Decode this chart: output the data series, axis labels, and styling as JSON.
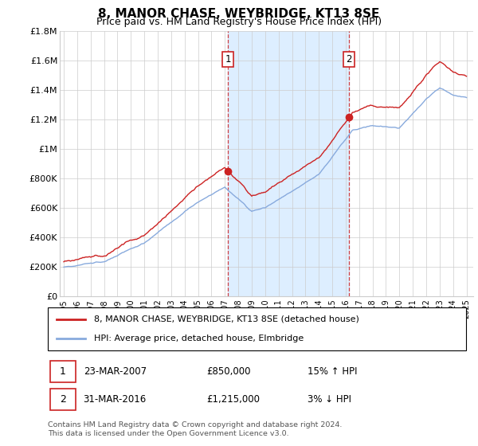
{
  "title": "8, MANOR CHASE, WEYBRIDGE, KT13 8SE",
  "subtitle": "Price paid vs. HM Land Registry's House Price Index (HPI)",
  "legend_line1": "8, MANOR CHASE, WEYBRIDGE, KT13 8SE (detached house)",
  "legend_line2": "HPI: Average price, detached house, Elmbridge",
  "sale1_date": "23-MAR-2007",
  "sale1_price": "£850,000",
  "sale1_hpi": "15% ↑ HPI",
  "sale2_date": "31-MAR-2016",
  "sale2_price": "£1,215,000",
  "sale2_hpi": "3% ↓ HPI",
  "footnote": "Contains HM Land Registry data © Crown copyright and database right 2024.\nThis data is licensed under the Open Government Licence v3.0.",
  "red_color": "#cc2222",
  "blue_color": "#88aadd",
  "shading_color": "#ddeeff",
  "grid_color": "#cccccc",
  "background_color": "#ffffff",
  "ylim_min": 0,
  "ylim_max": 1800000,
  "yticks": [
    0,
    200000,
    400000,
    600000,
    800000,
    1000000,
    1200000,
    1400000,
    1600000,
    1800000
  ],
  "ytick_labels": [
    "£0",
    "£200K",
    "£400K",
    "£600K",
    "£800K",
    "£1M",
    "£1.2M",
    "£1.4M",
    "£1.6M",
    "£1.8M"
  ],
  "sale1_year": 2007.23,
  "sale2_year": 2016.25,
  "sale1_price_val": 850000,
  "sale2_price_val": 1215000
}
